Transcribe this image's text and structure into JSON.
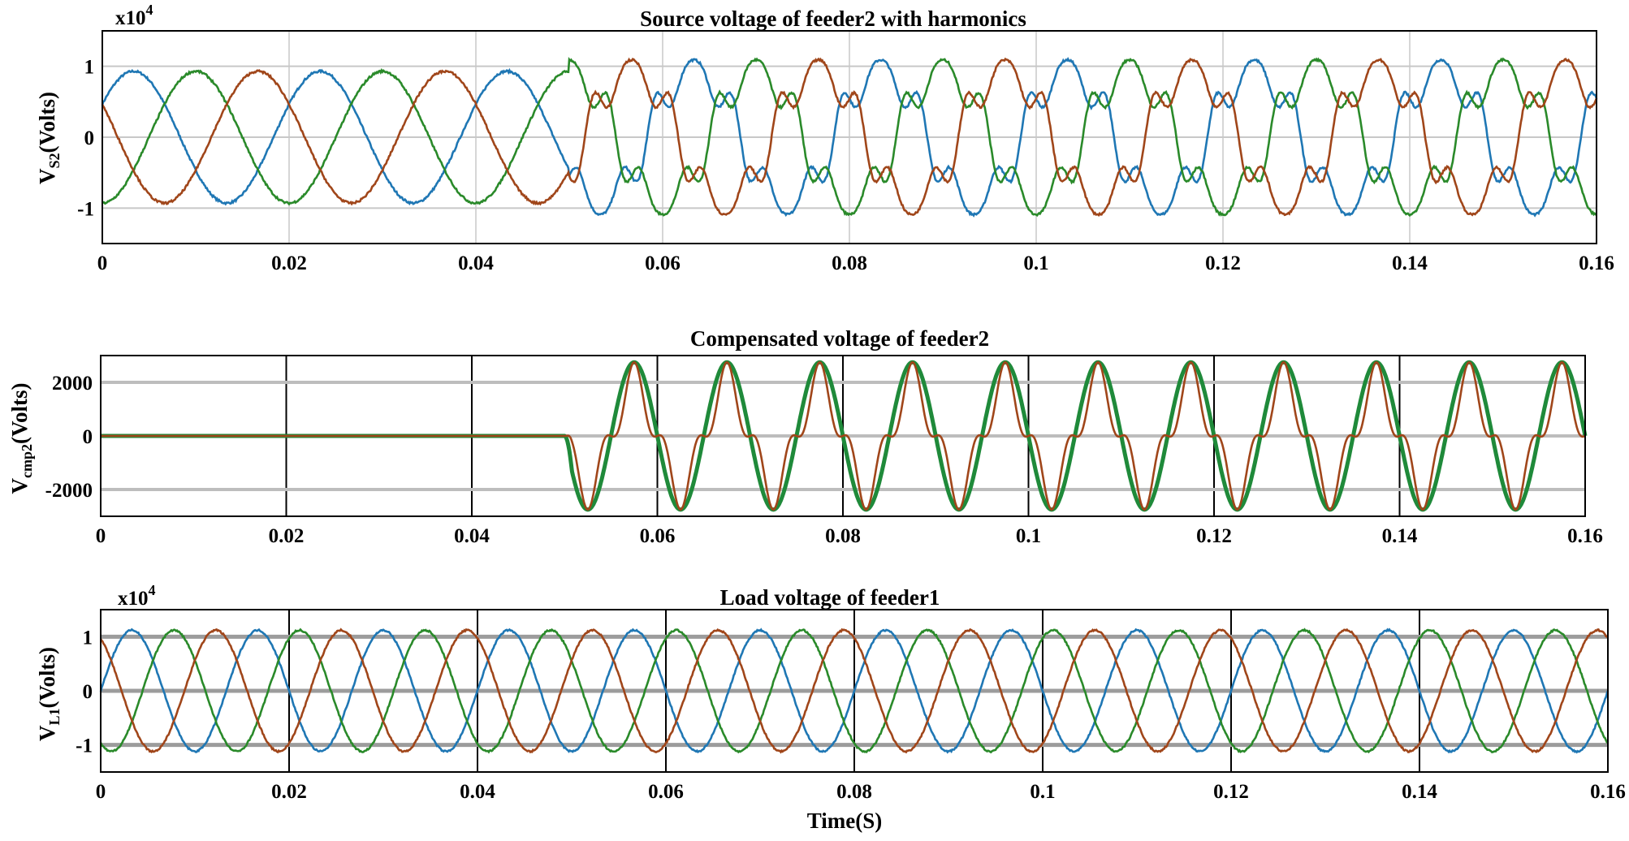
{
  "chart_data": [
    {
      "type": "line",
      "title": "Source voltage of feeder2 with harmonics",
      "ylabel": "V",
      "ylabel_sub": "S2",
      "ylabel_unit": "(Volts)",
      "exponent_base": "x10",
      "exponent_power": "4",
      "xlim": [
        0,
        0.16
      ],
      "ylim": [
        -1.5,
        1.5
      ],
      "x_ticks": [
        "0",
        "0.02",
        "0.04",
        "0.06",
        "0.08",
        "0.1",
        "0.12",
        "0.14",
        "0.16"
      ],
      "y_ticks": [
        "1",
        "0",
        "-1"
      ],
      "y_tick_values": [
        1,
        0,
        -1
      ],
      "grid": true,
      "frequency_hz": 50,
      "harmonics_start": 0.05,
      "series": [
        {
          "color": "#1f77b4",
          "amplitude": 0.93,
          "harmonic_amplitude_after": 1.1,
          "phase_deg": 30
        },
        {
          "color": "#2a8a2a",
          "amplitude": 0.93,
          "harmonic_amplitude_after": 1.1,
          "phase_deg": -90
        },
        {
          "color": "#a0461a",
          "amplitude": 0.93,
          "harmonic_amplitude_after": 1.1,
          "phase_deg": 150
        }
      ]
    },
    {
      "type": "line",
      "title": "Compensated voltage of feeder2",
      "ylabel": "V",
      "ylabel_sub": "cmp2",
      "ylabel_unit": "(Volts)",
      "xlim": [
        0,
        0.16
      ],
      "ylim": [
        -3000,
        3000
      ],
      "x_ticks": [
        "0",
        "0.02",
        "0.04",
        "0.06",
        "0.08",
        "0.1",
        "0.12",
        "0.14",
        "0.16"
      ],
      "y_ticks": [
        "2000",
        "0",
        "-2000"
      ],
      "y_tick_values": [
        2000,
        0,
        -2000
      ],
      "grid": true,
      "frequency_hz": 100,
      "compensation_start": 0.05,
      "series": [
        {
          "color": "#1f8a3a",
          "amplitude": 2750
        },
        {
          "color": "#a0461a",
          "amplitude": 2750
        }
      ]
    },
    {
      "type": "line",
      "title": "Load voltage of feeder1",
      "ylabel": "V",
      "ylabel_sub": "L1",
      "ylabel_unit": "(Volts)",
      "exponent_base": "x10",
      "exponent_power": "4",
      "xlabel": "Time(S)",
      "xlim": [
        0,
        0.16
      ],
      "ylim": [
        -1.5,
        1.5
      ],
      "x_ticks": [
        "0",
        "0.02",
        "0.04",
        "0.06",
        "0.08",
        "0.1",
        "0.12",
        "0.14",
        "0.16"
      ],
      "y_ticks": [
        "1",
        "0",
        "-1"
      ],
      "y_tick_values": [
        1,
        0,
        -1
      ],
      "grid": true,
      "frequency_hz": 75,
      "series": [
        {
          "color": "#1f77b4",
          "amplitude": 1.12,
          "phase_deg": 0
        },
        {
          "color": "#2a8a2a",
          "amplitude": 1.12,
          "phase_deg": -120
        },
        {
          "color": "#a0461a",
          "amplitude": 1.12,
          "phase_deg": 120
        }
      ]
    }
  ]
}
